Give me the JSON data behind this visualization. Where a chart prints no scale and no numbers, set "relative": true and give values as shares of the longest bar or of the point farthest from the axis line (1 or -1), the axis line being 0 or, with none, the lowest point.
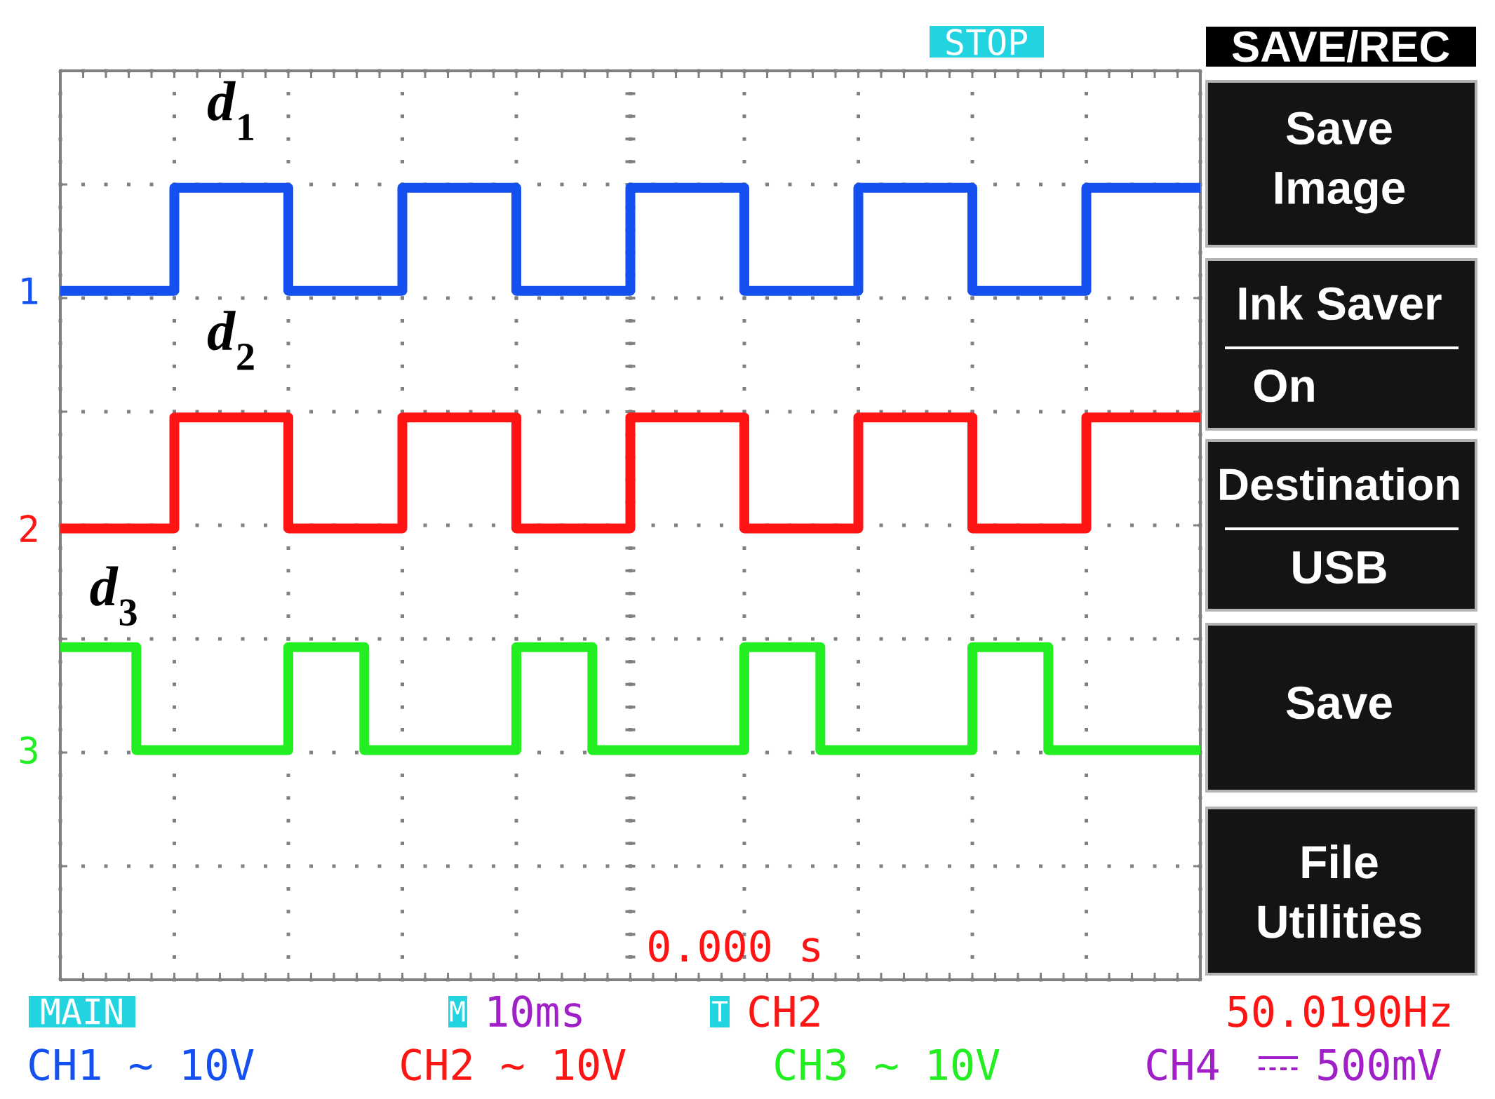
{
  "chart_data": {
    "type": "step",
    "relative": true,
    "grid": true,
    "categories": [
      null,
      null,
      null,
      null,
      null,
      null,
      null,
      null,
      null,
      null,
      null,
      null,
      null,
      null,
      null,
      null,
      null,
      null,
      null,
      null,
      null,
      null,
      null,
      null,
      null,
      null,
      null,
      null,
      null,
      null,
      null
    ],
    "series": [
      {
        "name": "*d*$_{1}$",
        "color": "#1450f0",
        "values": [
          0.87,
          0.87,
          0.87,
          1,
          1,
          1,
          0.87,
          0.87,
          0.87,
          1,
          1,
          1,
          0.87,
          0.87,
          0.87,
          1,
          1,
          1,
          0.87,
          0.87,
          0.87,
          1,
          1,
          1,
          0.87,
          0.87,
          0.87,
          1,
          1,
          1,
          1
        ]
      },
      {
        "name": "*d*$_{2}$",
        "color": "#ff1414",
        "values": [
          0.57,
          0.57,
          0.57,
          0.71,
          0.71,
          0.71,
          0.57,
          0.57,
          0.57,
          0.71,
          0.71,
          0.71,
          0.57,
          0.57,
          0.57,
          0.71,
          0.71,
          0.71,
          0.57,
          0.57,
          0.57,
          0.71,
          0.71,
          0.71,
          0.57,
          0.57,
          0.57,
          0.71,
          0.71,
          0.71,
          0.71
        ]
      },
      {
        "name": "*d*$_{3}$",
        "color": "#22ee22",
        "values": [
          0.42,
          0.42,
          0.29,
          0.29,
          0.29,
          0.29,
          0.42,
          0.42,
          0.29,
          0.29,
          0.29,
          0.29,
          0.42,
          0.42,
          0.29,
          0.29,
          0.29,
          0.29,
          0.42,
          0.42,
          0.29,
          0.29,
          0.29,
          0.29,
          0.42,
          0.42,
          0.29,
          0.29,
          0.29,
          0.29,
          0.29
        ]
      }
    ],
    "annotations": [
      "1",
      "2",
      "3",
      "STOP",
      "SAVE/REC",
      "Save Image",
      "Ink Saver",
      "On",
      "Destination",
      "USB",
      "Save",
      "File Utilities",
      "0.000 s",
      "MAIN",
      "M",
      "10ms",
      "T",
      "CH2",
      "50.0190Hz",
      "CH1 ~ 10V",
      "CH2 ~ 10V",
      "CH3 ~ 10V",
      "CH4",
      "500mV"
    ]
  }
}
